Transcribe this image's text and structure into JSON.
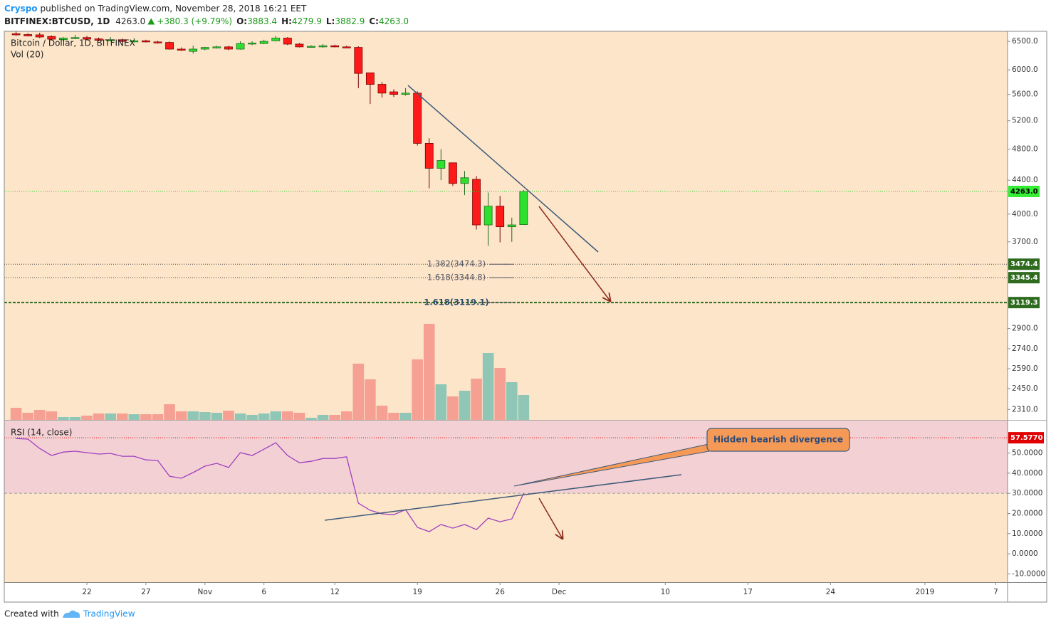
{
  "header": {
    "author": "Cryspo",
    "published": "published on TradingView.com, November 28, 2018 16:21 EET",
    "symbol": "BITFINEX:BTCUSD, 1D",
    "last": "4263.0",
    "change": "+380.3 (+9.79%)",
    "ohlc": [
      {
        "key": "O:",
        "value": "3883.4"
      },
      {
        "key": "H:",
        "value": "4279.9"
      },
      {
        "key": "L:",
        "value": "3882.9"
      },
      {
        "key": "C:",
        "value": "4263.0"
      }
    ]
  },
  "chart_data": [
    {
      "type": "candlestick",
      "title": "Bitcoin / Dollar, 1D, BITFINEX",
      "log": true,
      "xlim": [
        "2018-10-15",
        "2019-01-08"
      ],
      "xticks": [
        {
          "value": "2018-10-22",
          "label": "22"
        },
        {
          "value": "2018-10-27",
          "label": "27"
        },
        {
          "value": "2018-11-01",
          "label": "Nov"
        },
        {
          "value": "2018-11-06",
          "label": "6"
        },
        {
          "value": "2018-11-12",
          "label": "12"
        },
        {
          "value": "2018-11-19",
          "label": "19"
        },
        {
          "value": "2018-11-26",
          "label": "26"
        },
        {
          "value": "2018-12-01",
          "label": "Dec"
        },
        {
          "value": "2018-12-10",
          "label": "10"
        },
        {
          "value": "2018-12-17",
          "label": "17"
        },
        {
          "value": "2018-12-24",
          "label": "24"
        },
        {
          "value": "2019-01-01",
          "label": "2019"
        },
        {
          "value": "2019-01-07",
          "label": "7"
        }
      ],
      "x": [
        "2018-10-16",
        "2018-10-17",
        "2018-10-18",
        "2018-10-19",
        "2018-10-20",
        "2018-10-21",
        "2018-10-22",
        "2018-10-23",
        "2018-10-24",
        "2018-10-25",
        "2018-10-26",
        "2018-10-27",
        "2018-10-28",
        "2018-10-29",
        "2018-10-30",
        "2018-10-31",
        "2018-11-01",
        "2018-11-02",
        "2018-11-03",
        "2018-11-04",
        "2018-11-05",
        "2018-11-06",
        "2018-11-07",
        "2018-11-08",
        "2018-11-09",
        "2018-11-10",
        "2018-11-11",
        "2018-11-12",
        "2018-11-13",
        "2018-11-14",
        "2018-11-15",
        "2018-11-16",
        "2018-11-17",
        "2018-11-18",
        "2018-11-19",
        "2018-11-20",
        "2018-11-21",
        "2018-11-22",
        "2018-11-23",
        "2018-11-24",
        "2018-11-25",
        "2018-11-26",
        "2018-11-27",
        "2018-11-28"
      ],
      "open": [
        6640,
        6625,
        6620,
        6590,
        6530,
        6555,
        6570,
        6545,
        6520,
        6530,
        6500,
        6510,
        6490,
        6480,
        6360,
        6320,
        6360,
        6390,
        6400,
        6360,
        6460,
        6460,
        6510,
        6560,
        6450,
        6400,
        6400,
        6420,
        6400,
        6390,
        5950,
        5760,
        5640,
        5600,
        5620,
        4880,
        4550,
        4620,
        4360,
        4410,
        3880,
        4090,
        3860,
        3883.4
      ],
      "high": [
        6680,
        6650,
        6660,
        6610,
        6580,
        6620,
        6600,
        6570,
        6580,
        6550,
        6560,
        6530,
        6510,
        6500,
        6390,
        6420,
        6400,
        6420,
        6420,
        6500,
        6500,
        6530,
        6600,
        6580,
        6470,
        6430,
        6450,
        6440,
        6420,
        6410,
        5950,
        5800,
        5680,
        5700,
        5650,
        4950,
        4800,
        4620,
        4515,
        4450,
        4250,
        4210,
        3960,
        4279.9
      ],
      "low": [
        6600,
        6590,
        6560,
        6520,
        6500,
        6540,
        6520,
        6500,
        6500,
        6480,
        6480,
        6480,
        6460,
        6350,
        6330,
        6280,
        6340,
        6370,
        6340,
        6350,
        6430,
        6450,
        6500,
        6430,
        6390,
        6390,
        6380,
        6390,
        6380,
        5700,
        5450,
        5550,
        5560,
        5580,
        4850,
        4300,
        4400,
        4330,
        4220,
        3830,
        3660,
        3695,
        3700,
        3882.9
      ],
      "close": [
        6620,
        6600,
        6580,
        6540,
        6560,
        6570,
        6540,
        6520,
        6530,
        6500,
        6510,
        6490,
        6480,
        6360,
        6340,
        6360,
        6390,
        6400,
        6360,
        6460,
        6470,
        6500,
        6560,
        6450,
        6400,
        6410,
        6420,
        6400,
        6390,
        5940,
        5760,
        5620,
        5600,
        5620,
        4880,
        4550,
        4650,
        4360,
        4430,
        3880,
        4090,
        3860,
        3880,
        4263.0
      ],
      "up_color": "#2ee02e",
      "down_color": "#ff1a1a",
      "ylim": [
        2243,
        6686
      ],
      "yticks": [
        {
          "value": 6500,
          "label": "6500.0"
        },
        {
          "value": 6000,
          "label": "6000.0"
        },
        {
          "value": 5600,
          "label": "5600.0"
        },
        {
          "value": 5200,
          "label": "5200.0"
        },
        {
          "value": 4800,
          "label": "4800.0"
        },
        {
          "value": 4400,
          "label": "4400.0"
        },
        {
          "value": 4000,
          "label": "4000.0"
        },
        {
          "value": 3700,
          "label": "3700.0"
        },
        {
          "value": 2900,
          "label": "2900.0"
        },
        {
          "value": 2740,
          "label": "2740.0"
        },
        {
          "value": 2590,
          "label": "2590.0"
        },
        {
          "value": 2450,
          "label": "2450.0"
        },
        {
          "value": 2310,
          "label": "2310.0"
        }
      ],
      "price_lines": [
        {
          "value": 4263.0,
          "label": "4263.0",
          "color": "#33cc33",
          "tag_color": "#33ee33",
          "tag_text": "#000"
        },
        {
          "value": 3474.4,
          "label": "3474.4",
          "fib": "1.382(3474.3)",
          "color": "#444444",
          "tag_color": "#2e6b1f",
          "tag_text": "#fff"
        },
        {
          "value": 3345.4,
          "label": "3345.4",
          "fib": "1.618(3344.8)",
          "color": "#444444",
          "tag_color": "#2e6b1f",
          "tag_text": "#fff"
        },
        {
          "value": 3119.3,
          "label": "3119.3",
          "fib": "1.618(3119.1)",
          "color": "#2e6b1f",
          "tag_color": "#2e6b1f",
          "tag_text": "#fff",
          "bold": true
        }
      ]
    },
    {
      "type": "bar",
      "title": "Vol (20)",
      "x": [
        "2018-10-16",
        "2018-10-17",
        "2018-10-18",
        "2018-10-19",
        "2018-10-20",
        "2018-10-21",
        "2018-10-22",
        "2018-10-23",
        "2018-10-24",
        "2018-10-25",
        "2018-10-26",
        "2018-10-27",
        "2018-10-28",
        "2018-10-29",
        "2018-10-30",
        "2018-10-31",
        "2018-11-01",
        "2018-11-02",
        "2018-11-03",
        "2018-11-04",
        "2018-11-05",
        "2018-11-06",
        "2018-11-07",
        "2018-11-08",
        "2018-11-09",
        "2018-11-10",
        "2018-11-11",
        "2018-11-12",
        "2018-11-13",
        "2018-11-14",
        "2018-11-15",
        "2018-11-16",
        "2018-11-17",
        "2018-11-18",
        "2018-11-19",
        "2018-11-20",
        "2018-11-21",
        "2018-11-22",
        "2018-11-23",
        "2018-11-24",
        "2018-11-25",
        "2018-11-26",
        "2018-11-27",
        "2018-11-28"
      ],
      "values": [
        17,
        10,
        14,
        12,
        4,
        4,
        6,
        9,
        9,
        9,
        8,
        8,
        8,
        22,
        12,
        12,
        11,
        10,
        13,
        9,
        7,
        9,
        12,
        12,
        10,
        3,
        7,
        7,
        12,
        79,
        57,
        20,
        10,
        10,
        85,
        135,
        50,
        33,
        41,
        58,
        94,
        73,
        53,
        35
      ],
      "ylim": [
        0,
        546
      ],
      "up_color": "#8fc6b6",
      "down_color": "#f5a092"
    },
    {
      "type": "line",
      "title": "RSI (14, close)",
      "color": "#a040c0",
      "x": [
        "2018-10-16",
        "2018-10-17",
        "2018-10-18",
        "2018-10-19",
        "2018-10-20",
        "2018-10-21",
        "2018-10-22",
        "2018-10-23",
        "2018-10-24",
        "2018-10-25",
        "2018-10-26",
        "2018-10-27",
        "2018-10-28",
        "2018-10-29",
        "2018-10-30",
        "2018-10-31",
        "2018-11-01",
        "2018-11-02",
        "2018-11-03",
        "2018-11-04",
        "2018-11-05",
        "2018-11-06",
        "2018-11-07",
        "2018-11-08",
        "2018-11-09",
        "2018-11-10",
        "2018-11-11",
        "2018-11-12",
        "2018-11-13",
        "2018-11-14",
        "2018-11-15",
        "2018-11-16",
        "2018-11-17",
        "2018-11-18",
        "2018-11-19",
        "2018-11-20",
        "2018-11-21",
        "2018-11-22",
        "2018-11-23",
        "2018-11-24",
        "2018-11-25",
        "2018-11-26",
        "2018-11-27",
        "2018-11-28"
      ],
      "values": [
        57.2,
        56.9,
        52.3,
        48.8,
        50.5,
        50.9,
        50.2,
        49.5,
        49.8,
        48.4,
        48.4,
        46.6,
        46.3,
        38.5,
        37.5,
        40.3,
        43.5,
        44.9,
        42.8,
        50.2,
        48.8,
        51.9,
        55.1,
        48.8,
        45.2,
        45.9,
        47.3,
        47.3,
        48.1,
        25.1,
        21.6,
        19.8,
        19.4,
        21.9,
        13.1,
        11.0,
        14.5,
        12.7,
        14.5,
        12.0,
        17.7,
        15.9,
        17.3,
        30.0
      ],
      "ylim": [
        -14.1,
        66.1
      ],
      "yticks": [
        {
          "value": 50,
          "label": "50.0000"
        },
        {
          "value": 40,
          "label": "40.0000"
        },
        {
          "value": 30,
          "label": "30.0000"
        },
        {
          "value": 20,
          "label": "20.0000"
        },
        {
          "value": 10,
          "label": "10.0000"
        },
        {
          "value": 0,
          "label": "0.0000"
        },
        {
          "value": -10,
          "label": "-10.0000"
        }
      ],
      "band": [
        30,
        70
      ],
      "band_color": "#f3d0d3",
      "level_line": {
        "value": 57.577,
        "label": "57.5770",
        "color": "#e00000"
      }
    }
  ],
  "annotation": "Hidden bearish divergence",
  "footer": {
    "created": "Created with",
    "brand": "TradingView"
  }
}
